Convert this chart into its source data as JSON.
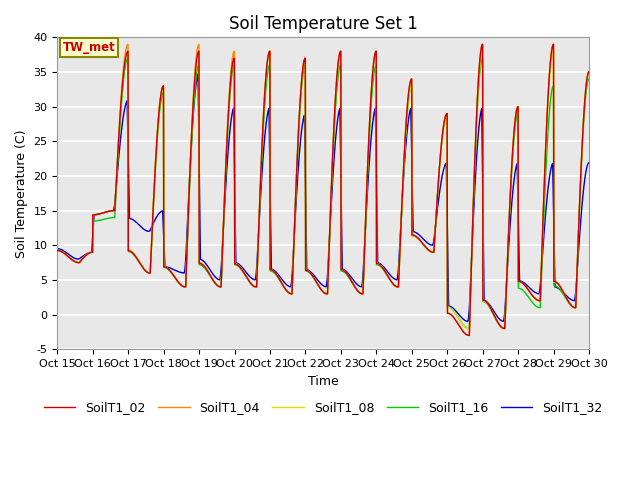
{
  "title": "Soil Temperature Set 1",
  "xlabel": "Time",
  "ylabel": "Soil Temperature (C)",
  "ylim": [
    -5,
    40
  ],
  "yticks": [
    -5,
    0,
    5,
    10,
    15,
    20,
    25,
    30,
    35,
    40
  ],
  "xtick_labels": [
    "Oct 15",
    "Oct 16",
    "Oct 17",
    "Oct 18",
    "Oct 19",
    "Oct 20",
    "Oct 21",
    "Oct 22",
    "Oct 23",
    "Oct 24",
    "Oct 25",
    "Oct 26",
    "Oct 27",
    "Oct 28",
    "Oct 29",
    "Oct 30"
  ],
  "series_colors": {
    "SoilT1_02": "#cc0000",
    "SoilT1_04": "#ff8800",
    "SoilT1_08": "#dddd00",
    "SoilT1_16": "#00cc00",
    "SoilT1_32": "#0000cc"
  },
  "legend_labels": [
    "SoilT1_02",
    "SoilT1_04",
    "SoilT1_08",
    "SoilT1_16",
    "SoilT1_32"
  ],
  "annotation_text": "TW_met",
  "annotation_color": "#cc0000",
  "plot_bg_color": "#e8e8e8",
  "grid_color": "white",
  "linewidth": 1.0,
  "title_fontsize": 12,
  "axis_label_fontsize": 9,
  "tick_fontsize": 8,
  "legend_fontsize": 9
}
